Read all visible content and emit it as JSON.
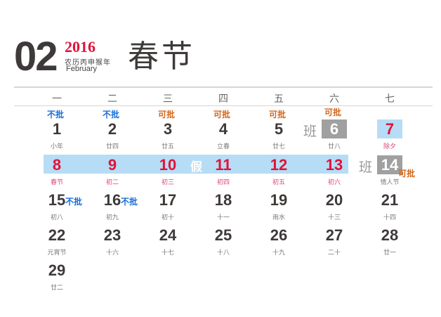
{
  "header": {
    "month": "02",
    "year": "2016",
    "lunar_year": "农历丙申猴年",
    "english_month": "February",
    "title": "春节"
  },
  "weekdays": [
    "一",
    "二",
    "三",
    "四",
    "五",
    "六",
    "七"
  ],
  "holiday_label": "假",
  "workday_label": "班",
  "colors": {
    "holiday_band": "#b6ddf5",
    "workday_box": "#a0a0a0",
    "holiday_red": "#e2123a",
    "reject_blue": "#1a6fd8",
    "approve_orange": "#d2691e"
  },
  "approval_labels": {
    "reject": "不批",
    "approve": "可批"
  },
  "days": [
    {
      "day": "1",
      "lunar": "小年",
      "approval": "不批"
    },
    {
      "day": "2",
      "lunar": "廿四",
      "approval": "不批"
    },
    {
      "day": "3",
      "lunar": "廿五",
      "approval": "可批"
    },
    {
      "day": "4",
      "lunar": "立春",
      "approval": "可批"
    },
    {
      "day": "5",
      "lunar": "廿七",
      "approval": "可批"
    },
    {
      "day": "6",
      "lunar": "廿八",
      "approval": "可批",
      "workday": true
    },
    {
      "day": "7",
      "lunar": "除夕",
      "holiday": true
    },
    {
      "day": "8",
      "lunar": "春节",
      "holiday": true
    },
    {
      "day": "9",
      "lunar": "初二",
      "holiday": true
    },
    {
      "day": "10",
      "lunar": "初三",
      "holiday": true
    },
    {
      "day": "11",
      "lunar": "初四",
      "holiday": true
    },
    {
      "day": "12",
      "lunar": "初五",
      "holiday": true
    },
    {
      "day": "13",
      "lunar": "初六",
      "holiday": true
    },
    {
      "day": "14",
      "lunar": "情人节",
      "approval": "可批",
      "workday": true
    },
    {
      "day": "15",
      "lunar": "初八",
      "approval": "不批"
    },
    {
      "day": "16",
      "lunar": "初九",
      "approval": "不批"
    },
    {
      "day": "17",
      "lunar": "初十"
    },
    {
      "day": "18",
      "lunar": "十一"
    },
    {
      "day": "19",
      "lunar": "雨水"
    },
    {
      "day": "20",
      "lunar": "十三"
    },
    {
      "day": "21",
      "lunar": "十四"
    },
    {
      "day": "22",
      "lunar": "元宵节"
    },
    {
      "day": "23",
      "lunar": "十六"
    },
    {
      "day": "24",
      "lunar": "十七"
    },
    {
      "day": "25",
      "lunar": "十八"
    },
    {
      "day": "26",
      "lunar": "十九"
    },
    {
      "day": "27",
      "lunar": "二十"
    },
    {
      "day": "28",
      "lunar": "廿一"
    },
    {
      "day": "29",
      "lunar": "廿二"
    }
  ]
}
